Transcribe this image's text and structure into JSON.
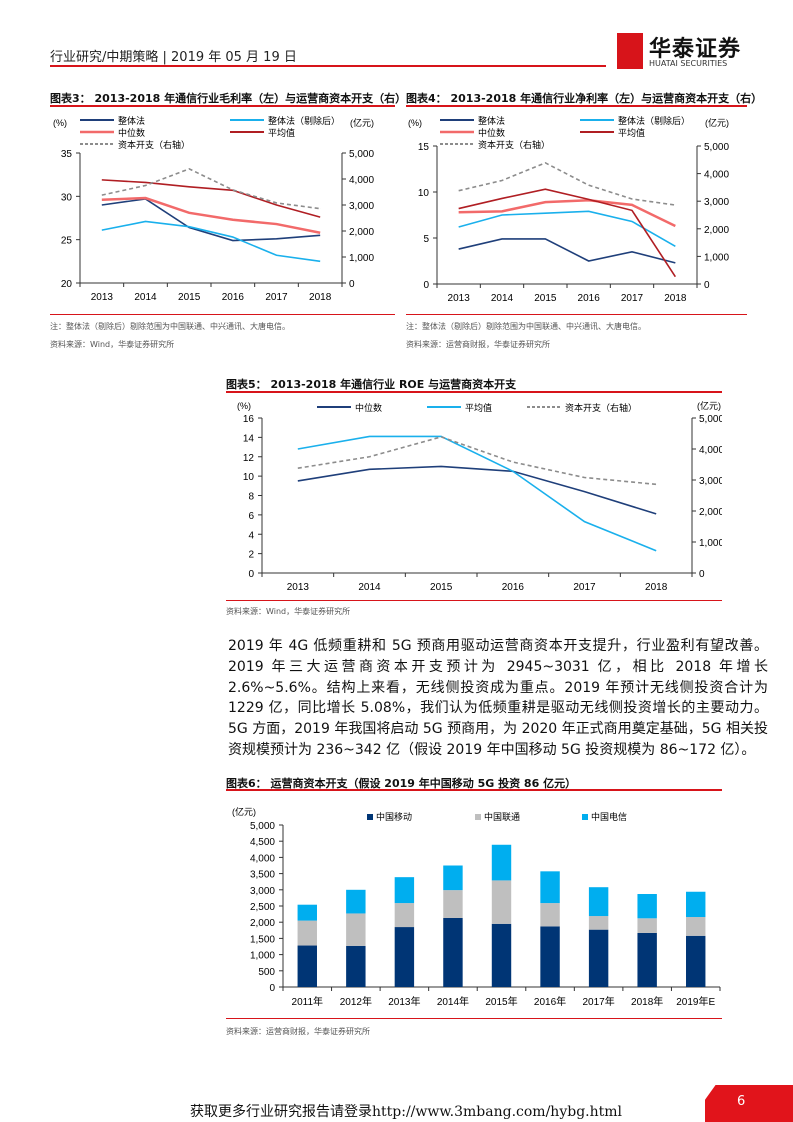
{
  "header": {
    "text": "行业研究/中期策略 | 2019 年 05 月 19 日",
    "logo_cn": "华泰证券",
    "logo_en": "HUATAI SECURITIES"
  },
  "fig3": {
    "title": "图表3： 2013-2018 年通信行业毛利率（左）与运营商资本开支（右）",
    "note": "注：整体法（剔除后）剔除范围为中国联通、中兴通讯、大唐电信。",
    "source": "资料来源：Wind，华泰证券研究所"
  },
  "fig4": {
    "title": "图表4： 2013-2018 年通信行业净利率（左）与运营商资本开支（右）",
    "note": "注：整体法（剔除后）剔除范围为中国联通、中兴通讯、大唐电信。",
    "source": "资料来源：运营商财报，华泰证券研究所"
  },
  "fig5": {
    "title": "图表5： 2013-2018 年通信行业 ROE 与运营商资本开支",
    "source": "资料来源：Wind，华泰证券研究所"
  },
  "fig6": {
    "title": "图表6： 运营商资本开支（假设 2019 年中国移动 5G 投资 86 亿元）",
    "source": "资料来源：运营商财报，华泰证券研究所"
  },
  "paragraph": "2019 年 4G 低频重耕和 5G 预商用驱动运营商资本开支提升，行业盈利有望改善。2019 年三大运营商资本开支预计为 2945~3031 亿，相比 2018 年增长 2.6%~5.6%。结构上来看，无线侧投资成为重点。2019 年预计无线侧投资合计为 1229 亿，同比增长 5.08%，我们认为低频重耕是驱动无线侧投资增长的主要动力。5G 方面，2019 年我国将启动 5G 预商用，为 2020 年正式商用奠定基础，5G 相关投资规模预计为 236~342 亿（假设 2019 年中国移动 5G 投资规模为 86~172 亿）。",
  "footer": {
    "text": "获取更多行业研究报告请登录http://www.3mbang.com/hybg.html",
    "page": "6"
  },
  "chart_data": [
    {
      "type": "line",
      "id": "fig3",
      "categories": [
        "2013",
        "2014",
        "2015",
        "2016",
        "2017",
        "2018"
      ],
      "ylabel": "(%)",
      "y2label": "(亿元)",
      "ylim": [
        20,
        35
      ],
      "yticks": [
        20,
        25,
        30,
        35
      ],
      "y2lim": [
        0,
        5000
      ],
      "y2ticks": [
        0,
        1000,
        2000,
        3000,
        4000,
        5000
      ],
      "y2tick_labels": [
        "0",
        "1,000",
        "2,000",
        "3,000",
        "4,000",
        "5,000"
      ],
      "legend": "top",
      "grid": false,
      "series": [
        {
          "name": "整体法",
          "color": "#1f3f7a",
          "axis": "left",
          "values": [
            29.0,
            29.7,
            26.4,
            24.9,
            25.1,
            25.5
          ]
        },
        {
          "name": "整体法（剔除后）",
          "color": "#1ab0ec",
          "axis": "left",
          "values": [
            26.1,
            27.1,
            26.5,
            25.3,
            23.2,
            22.5
          ]
        },
        {
          "name": "中位数",
          "color": "#f26a6a",
          "axis": "left",
          "values": [
            29.6,
            29.8,
            28.1,
            27.3,
            26.8,
            25.8
          ],
          "width": 2.5
        },
        {
          "name": "平均值",
          "color": "#b01e23",
          "axis": "left",
          "values": [
            31.9,
            31.6,
            31.1,
            30.7,
            29.0,
            27.6
          ]
        },
        {
          "name": "资本开支（右轴）",
          "color": "#8c8c8c",
          "axis": "right",
          "dash": true,
          "values": [
            3380,
            3750,
            4390,
            3580,
            3080,
            2860
          ]
        }
      ]
    },
    {
      "type": "line",
      "id": "fig4",
      "categories": [
        "2013",
        "2014",
        "2015",
        "2016",
        "2017",
        "2018"
      ],
      "ylabel": "(%)",
      "y2label": "(亿元)",
      "ylim": [
        0,
        15
      ],
      "yticks": [
        0,
        5,
        10,
        15
      ],
      "y2lim": [
        0,
        5000
      ],
      "y2ticks": [
        0,
        1000,
        2000,
        3000,
        4000,
        5000
      ],
      "y2tick_labels": [
        "0",
        "1,000",
        "2,000",
        "3,000",
        "4,000",
        "5,000"
      ],
      "legend": "top",
      "grid": false,
      "series": [
        {
          "name": "整体法",
          "color": "#1f3f7a",
          "axis": "left",
          "values": [
            3.8,
            4.9,
            4.9,
            2.5,
            3.5,
            2.3
          ]
        },
        {
          "name": "整体法（剔除后）",
          "color": "#1ab0ec",
          "axis": "left",
          "values": [
            6.2,
            7.5,
            7.7,
            7.9,
            6.8,
            4.1
          ]
        },
        {
          "name": "中位数",
          "color": "#f26a6a",
          "axis": "left",
          "values": [
            7.8,
            7.9,
            8.9,
            9.1,
            8.6,
            6.3
          ],
          "width": 2.5
        },
        {
          "name": "平均值",
          "color": "#b01e23",
          "axis": "left",
          "values": [
            8.2,
            9.3,
            10.3,
            9.2,
            8.0,
            0.8
          ]
        },
        {
          "name": "资本开支（右轴）",
          "color": "#8c8c8c",
          "axis": "right",
          "dash": true,
          "values": [
            3380,
            3750,
            4390,
            3580,
            3080,
            2860
          ]
        }
      ]
    },
    {
      "type": "line",
      "id": "fig5",
      "categories": [
        "2013",
        "2014",
        "2015",
        "2016",
        "2017",
        "2018"
      ],
      "ylabel": "(%)",
      "y2label": "(亿元)",
      "ylim": [
        0,
        16
      ],
      "yticks": [
        0,
        2,
        4,
        6,
        8,
        10,
        12,
        14,
        16
      ],
      "y2lim": [
        0,
        5000
      ],
      "y2ticks": [
        0,
        1000,
        2000,
        3000,
        4000,
        5000
      ],
      "y2tick_labels": [
        "0",
        "1,000",
        "2,000",
        "3,000",
        "4,000",
        "5,000"
      ],
      "legend": "top",
      "grid": false,
      "series": [
        {
          "name": "中位数",
          "color": "#1f3f7a",
          "axis": "left",
          "values": [
            9.5,
            10.7,
            11.0,
            10.5,
            8.4,
            6.1
          ]
        },
        {
          "name": "平均值",
          "color": "#1ab0ec",
          "axis": "left",
          "values": [
            12.8,
            14.1,
            14.1,
            10.5,
            5.3,
            2.3
          ]
        },
        {
          "name": "资本开支（右轴）",
          "color": "#8c8c8c",
          "axis": "right",
          "dash": true,
          "values": [
            3380,
            3750,
            4390,
            3580,
            3080,
            2860
          ]
        }
      ]
    },
    {
      "type": "bar",
      "stacked": true,
      "id": "fig6",
      "categories": [
        "2011年",
        "2012年",
        "2013年",
        "2014年",
        "2015年",
        "2016年",
        "2017年",
        "2018年",
        "2019年E"
      ],
      "ylabel": "(亿元)",
      "ylim": [
        0,
        5000
      ],
      "yticks": [
        0,
        500,
        1000,
        1500,
        2000,
        2500,
        3000,
        3500,
        4000,
        4500,
        5000
      ],
      "ytick_labels": [
        "0",
        "500",
        "1,000",
        "1,500",
        "2,000",
        "2,500",
        "3,000",
        "3,500",
        "4,000",
        "4,500",
        "5,000"
      ],
      "legend": "top",
      "grid": false,
      "series": [
        {
          "name": "中国移动",
          "color": "#003575",
          "values": [
            1280,
            1270,
            1850,
            2130,
            1950,
            1870,
            1770,
            1670,
            1580
          ]
        },
        {
          "name": "中国联通",
          "color": "#bfbfbf",
          "values": [
            770,
            1000,
            740,
            860,
            1340,
            720,
            420,
            450,
            580
          ]
        },
        {
          "name": "中国电信",
          "color": "#00aeef",
          "values": [
            490,
            730,
            800,
            760,
            1100,
            980,
            890,
            750,
            780
          ]
        }
      ]
    }
  ]
}
